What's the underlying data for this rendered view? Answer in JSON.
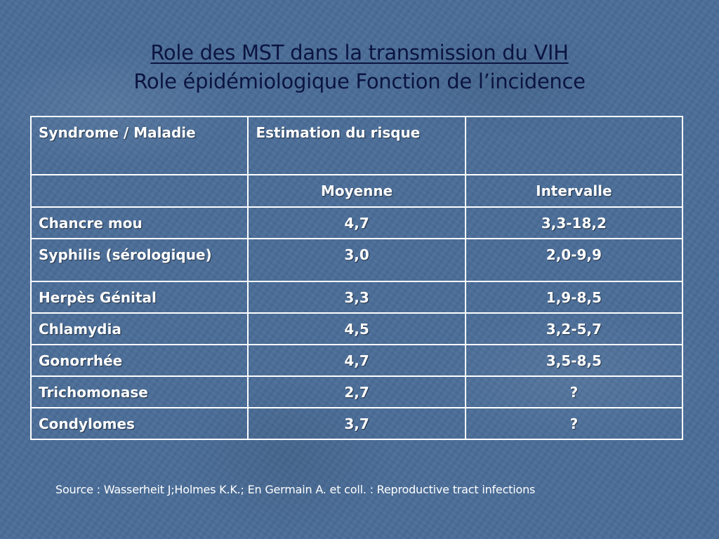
{
  "slide": {
    "title_line1": "Role des MST dans la transmission du VIH",
    "title_line2": "Role épidémiologique Fonction de l’incidence"
  },
  "table": {
    "header": {
      "col1": "Syndrome / Maladie",
      "col2": "Estimation du risque",
      "col3": ""
    },
    "subheader": {
      "col1": "",
      "col2": "Moyenne",
      "col3": "Intervalle"
    },
    "rows": [
      {
        "disease": "Chancre mou",
        "mean": "4,7",
        "range": "3,3-18,2"
      },
      {
        "disease": "Syphilis (sérologique)",
        "mean": "3,0",
        "range": "2,0-9,9"
      },
      {
        "disease": "Herpès Génital",
        "mean": "3,3",
        "range": "1,9-8,5"
      },
      {
        "disease": "Chlamydia",
        "mean": "4,5",
        "range": "3,2-5,7"
      },
      {
        "disease": "Gonorrhée",
        "mean": "4,7",
        "range": "3,5-8,5"
      },
      {
        "disease": "Trichomonase",
        "mean": "2,7",
        "range": "?"
      },
      {
        "disease": "Condylomes",
        "mean": "3,7",
        "range": "?"
      }
    ]
  },
  "footer": {
    "source": "Source : Wasserheit J;Holmes K.K.; En Germain A. et coll. : Reproductive tract infections"
  },
  "colors": {
    "background": "#4a6d98",
    "title_text": "#0b1440",
    "table_text": "#ffffff",
    "table_border": "#ffffff"
  }
}
